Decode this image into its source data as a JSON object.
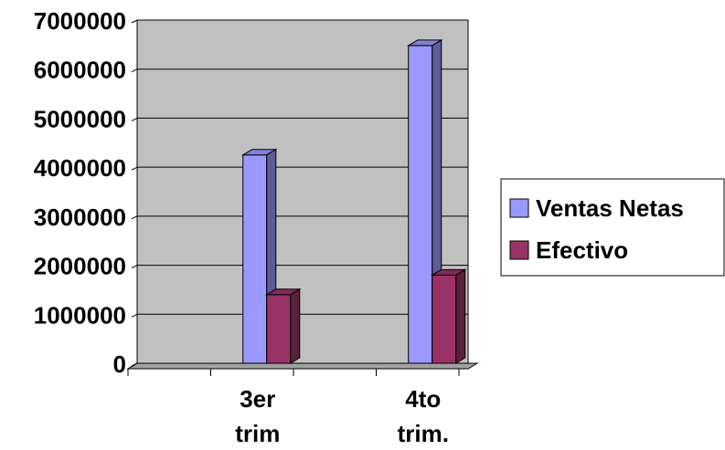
{
  "chart_data": {
    "type": "bar",
    "categories": [
      "",
      "3er trim",
      "",
      "4to trim."
    ],
    "series": [
      {
        "name": "Ventas Netas",
        "color": "#9999ff",
        "values": [
          0,
          4250000,
          0,
          6480000
        ]
      },
      {
        "name": "Efectivo",
        "color": "#993366",
        "values": [
          0,
          1400000,
          0,
          1800000
        ]
      }
    ],
    "ylim": [
      0,
      7000000
    ],
    "yticks": [
      "0",
      "1000000",
      "2000000",
      "3000000",
      "4000000",
      "5000000",
      "6000000",
      "7000000"
    ],
    "grid": true,
    "legend": "right",
    "plot_background": "#c0c0c0",
    "three_d": true
  }
}
